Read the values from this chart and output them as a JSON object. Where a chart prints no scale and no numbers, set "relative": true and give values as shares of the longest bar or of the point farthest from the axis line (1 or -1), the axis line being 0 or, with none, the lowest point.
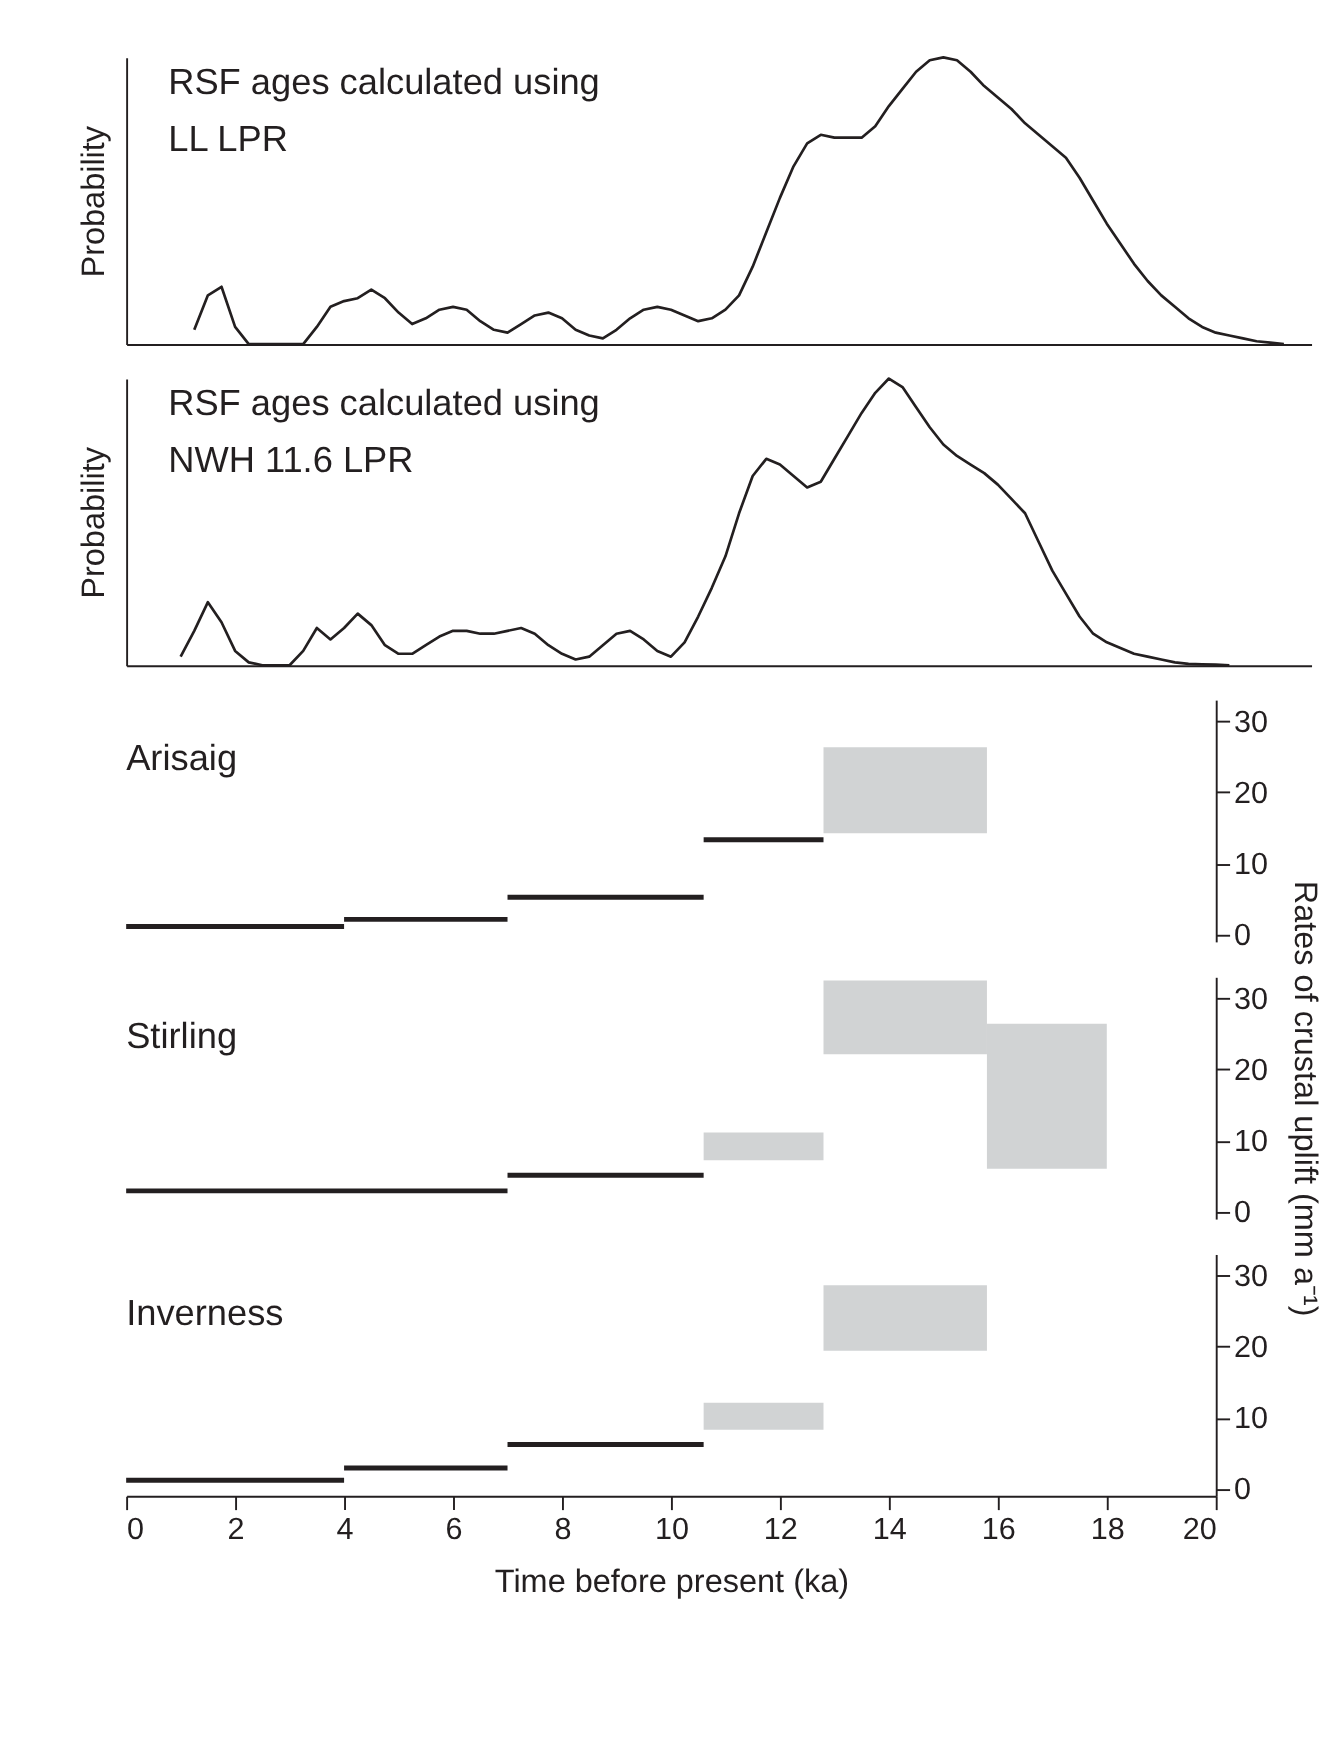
{
  "chart_data": [
    {
      "type": "line",
      "title": "RSF ages calculated using\nLL LPR",
      "ylabel": "Probability",
      "relative": true,
      "tick_labels": false,
      "grid": false,
      "categories": [
        null,
        null,
        null,
        null,
        null,
        null,
        null,
        null,
        null,
        null,
        null,
        null,
        null,
        null,
        null,
        null,
        null,
        null,
        null,
        null,
        null,
        null,
        null,
        null,
        null,
        null,
        null,
        null,
        null,
        null,
        null,
        null,
        null,
        null,
        null,
        null,
        null,
        null,
        null,
        null,
        null,
        null,
        null,
        null,
        null,
        null,
        null,
        null,
        null,
        null,
        null,
        null,
        null,
        null,
        null,
        null,
        null,
        null,
        null,
        null,
        null,
        null,
        null,
        null,
        null,
        null,
        null,
        null,
        null,
        null,
        null,
        null,
        null,
        null,
        null,
        null,
        null,
        null,
        null,
        null,
        null,
        null,
        null,
        null,
        null,
        null,
        null,
        null
      ],
      "series": [
        {
          "color": "#231f20",
          "values": [
            null,
            null,
            null,
            null,
            null,
            0.05,
            0.17,
            0.2,
            0.06,
            0,
            0,
            0,
            0,
            0,
            0.06,
            0.13,
            0.15,
            0.16,
            0.19,
            0.16,
            0.11,
            0.07,
            0.09,
            0.12,
            0.13,
            0.12,
            0.08,
            0.05,
            0.04,
            0.07,
            0.1,
            0.11,
            0.09,
            0.05,
            0.03,
            0.02,
            0.05,
            0.09,
            0.12,
            0.13,
            0.12,
            0.1,
            0.08,
            0.09,
            0.12,
            0.17,
            0.27,
            0.39,
            0.51,
            0.62,
            0.7,
            0.73,
            0.72,
            0.72,
            0.72,
            0.76,
            0.83,
            0.89,
            0.95,
            0.99,
            1,
            0.99,
            0.95,
            0.9,
            0.86,
            0.82,
            0.77,
            0.73,
            0.69,
            0.65,
            0.58,
            0.5,
            0.42,
            0.35,
            0.28,
            0.22,
            0.17,
            0.13,
            0.09,
            0.06,
            0.04,
            0.03,
            0.02,
            0.01,
            0.005,
            0,
            null,
            null
          ]
        }
      ]
    },
    {
      "type": "line",
      "title": "RSF ages calculated using\nNWH 11.6  LPR",
      "ylabel": "Probability",
      "relative": true,
      "tick_labels": false,
      "grid": false,
      "categories": [
        null,
        null,
        null,
        null,
        null,
        null,
        null,
        null,
        null,
        null,
        null,
        null,
        null,
        null,
        null,
        null,
        null,
        null,
        null,
        null,
        null,
        null,
        null,
        null,
        null,
        null,
        null,
        null,
        null,
        null,
        null,
        null,
        null,
        null,
        null,
        null,
        null,
        null,
        null,
        null,
        null,
        null,
        null,
        null,
        null,
        null,
        null,
        null,
        null,
        null,
        null,
        null,
        null,
        null,
        null,
        null,
        null,
        null,
        null,
        null,
        null,
        null,
        null,
        null,
        null,
        null,
        null,
        null,
        null,
        null,
        null,
        null,
        null,
        null,
        null,
        null,
        null,
        null,
        null,
        null,
        null,
        null,
        null,
        null,
        null,
        null,
        null,
        null
      ],
      "series": [
        {
          "color": "#231f20",
          "values": [
            null,
            null,
            null,
            null,
            0.03,
            0.12,
            0.22,
            0.15,
            0.05,
            0.01,
            0,
            0,
            0,
            0.05,
            0.13,
            0.09,
            0.13,
            0.18,
            0.14,
            0.07,
            0.04,
            0.04,
            0.07,
            0.1,
            0.12,
            0.12,
            0.11,
            0.11,
            0.12,
            0.13,
            0.11,
            0.07,
            0.04,
            0.02,
            0.03,
            0.07,
            0.11,
            0.12,
            0.09,
            0.05,
            0.03,
            0.08,
            0.17,
            0.27,
            0.38,
            0.53,
            0.66,
            0.72,
            0.7,
            0.66,
            0.62,
            0.64,
            0.72,
            0.8,
            0.88,
            0.95,
            1,
            0.97,
            0.9,
            0.83,
            0.77,
            0.73,
            0.7,
            0.67,
            0.63,
            0.58,
            0.53,
            0.43,
            0.33,
            0.25,
            0.17,
            0.11,
            0.08,
            0.06,
            0.04,
            0.03,
            0.02,
            0.01,
            0.005,
            0.003,
            0.002,
            0,
            null,
            null,
            null,
            null,
            null,
            null
          ]
        }
      ]
    },
    {
      "type": "line",
      "title": "Arisaig",
      "xlim": [
        0,
        20
      ],
      "y2lim": [
        -1,
        33
      ],
      "y2ticks": [
        0,
        10,
        20,
        30
      ],
      "tick_labels": "y",
      "grid": false,
      "series": [
        {
          "axis": "y2",
          "color": "#231f20",
          "x": [
            0,
            4
          ],
          "values": [
            1.1,
            1.1
          ]
        },
        {
          "axis": "y2",
          "color": "#231f20",
          "x": [
            4,
            7
          ],
          "values": [
            2.1,
            2.1
          ]
        },
        {
          "axis": "y2",
          "color": "#231f20",
          "x": [
            7,
            10.6
          ],
          "values": [
            5.2,
            5.2
          ]
        },
        {
          "axis": "y2",
          "color": "#231f20",
          "x": [
            10.6,
            12.8
          ],
          "values": [
            13.3,
            13.3
          ]
        },
        {
          "axis": "y2",
          "type": "area",
          "color": "#d1d3d4",
          "x": [
            12.8,
            15.8
          ],
          "values": [
            null,
            null
          ],
          "lower": [
            14.2,
            14.2
          ],
          "upper": [
            26.3,
            26.3
          ]
        }
      ]
    },
    {
      "type": "line",
      "title": "Stirling",
      "xlim": [
        0,
        20
      ],
      "y2lim": [
        -1,
        33
      ],
      "y2ticks": [
        0,
        10,
        20,
        30
      ],
      "y2label": "Rates of crustal uplift (mm a⁻¹)",
      "tick_labels": "y",
      "grid": false,
      "series": [
        {
          "axis": "y2",
          "color": "#231f20",
          "x": [
            0,
            7
          ],
          "values": [
            2.9,
            2.9
          ]
        },
        {
          "axis": "y2",
          "color": "#231f20",
          "x": [
            7,
            10.6
          ],
          "values": [
            5.1,
            5.1
          ]
        },
        {
          "axis": "y2",
          "type": "area",
          "color": "#d1d3d4",
          "x": [
            10.6,
            12.8
          ],
          "values": [
            null,
            null
          ],
          "lower": [
            7.2,
            7.2
          ],
          "upper": [
            11.1,
            11.1
          ]
        },
        {
          "axis": "y2",
          "type": "area",
          "color": "#d1d3d4",
          "x": [
            12.8,
            15.8
          ],
          "values": [
            null,
            null
          ],
          "lower": [
            22.1,
            22.1
          ],
          "upper": [
            32.5,
            32.5
          ]
        },
        {
          "axis": "y2",
          "type": "area",
          "color": "#d1d3d4",
          "x": [
            15.8,
            18
          ],
          "values": [
            null,
            null
          ],
          "lower": [
            6.0,
            6.0
          ],
          "upper": [
            26.4,
            26.4
          ]
        }
      ]
    },
    {
      "type": "line",
      "title": "Inverness",
      "xlabel": "Time before present (ka)",
      "xlim": [
        0,
        20
      ],
      "xticks": [
        0,
        2,
        4,
        6,
        8,
        10,
        12,
        14,
        16,
        18,
        20
      ],
      "y2lim": [
        -1,
        33
      ],
      "y2ticks": [
        0,
        10,
        20,
        30
      ],
      "grid": false,
      "series": [
        {
          "axis": "y2",
          "color": "#231f20",
          "x": [
            0,
            4
          ],
          "values": [
            1.2,
            1.2
          ]
        },
        {
          "axis": "y2",
          "color": "#231f20",
          "x": [
            4,
            7
          ],
          "values": [
            2.9,
            2.9
          ]
        },
        {
          "axis": "y2",
          "color": "#231f20",
          "x": [
            7,
            10.6
          ],
          "values": [
            6.2,
            6.2
          ]
        },
        {
          "axis": "y2",
          "type": "area",
          "color": "#d1d3d4",
          "x": [
            10.6,
            12.8
          ],
          "values": [
            null,
            null
          ],
          "lower": [
            8.3,
            8.3
          ],
          "upper": [
            12.1,
            12.1
          ]
        },
        {
          "axis": "y2",
          "type": "area",
          "color": "#d1d3d4",
          "x": [
            12.8,
            15.8
          ],
          "values": [
            null,
            null
          ],
          "lower": [
            19.4,
            19.4
          ],
          "upper": [
            28.6,
            28.6
          ]
        }
      ]
    }
  ]
}
